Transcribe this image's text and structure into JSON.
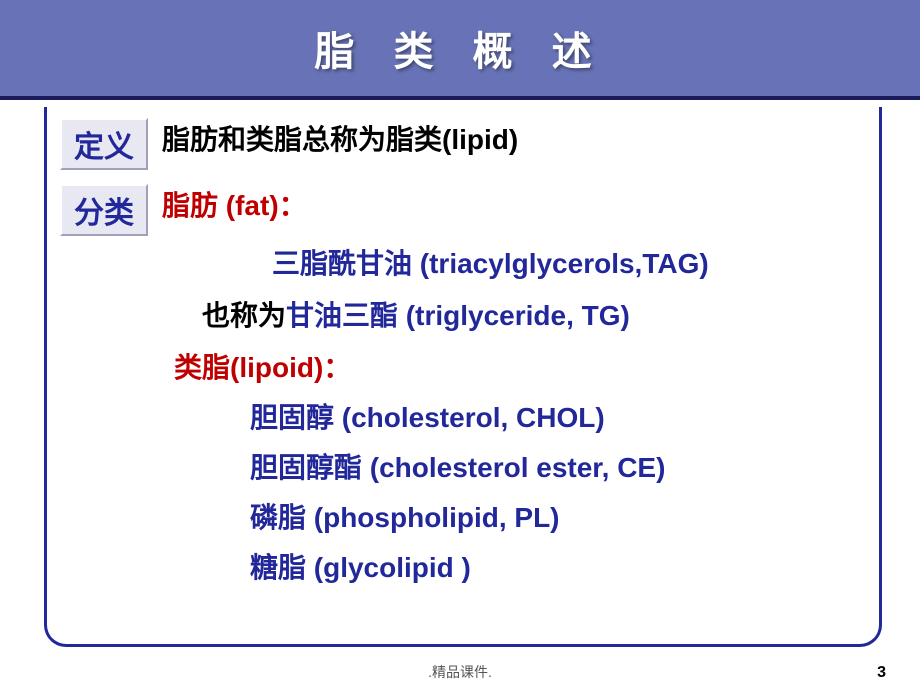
{
  "slide": {
    "title": "脂 类 概 述",
    "labels": {
      "definition": "定义",
      "classification": "分类"
    },
    "definition_text": "脂肪和类脂总称为脂类(lipid)",
    "fat": {
      "heading": "脂肪 (fat)：",
      "line1": "三脂酰甘油 (triacylglycerols,TAG)",
      "line2_black": "也称为",
      "line2_blue": "甘油三酯 (triglyceride, TG)"
    },
    "lipoid": {
      "heading": "类脂(lipoid)：",
      "items": [
        "胆固醇 (cholesterol, CHOL)",
        "胆固醇酯 (cholesterol ester, CE)",
        "磷脂 (phospholipid, PL)",
        "糖脂 (glycolipid )"
      ]
    },
    "footer": ".精品课件.",
    "page": "3",
    "colors": {
      "header_bg": "#6773b6",
      "header_border": "#1a1a5c",
      "title_color": "#ffffff",
      "label_bg": "#e8e8f3",
      "label_text": "#22289a",
      "red_text": "#c00000",
      "blue_text": "#22289a",
      "black_text": "#000000",
      "content_border": "#22289a"
    },
    "typography": {
      "title_fontsize": 40,
      "body_fontsize": 28,
      "label_fontsize": 30,
      "footer_fontsize": 14
    }
  }
}
